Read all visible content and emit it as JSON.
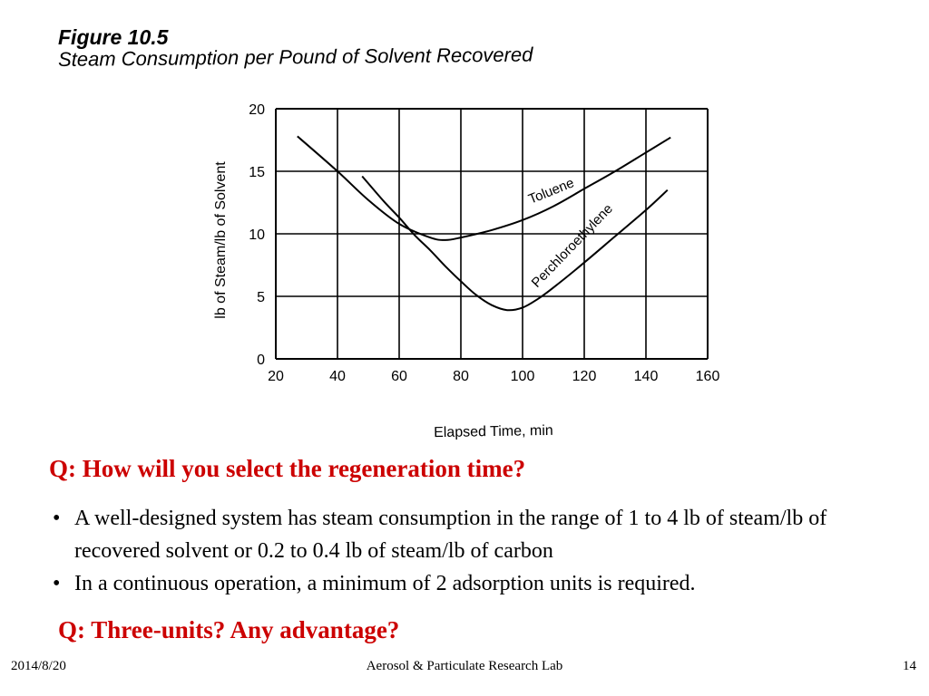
{
  "figure": {
    "label": "Figure 10.5",
    "title": "Steam Consumption per Pound of Solvent Recovered"
  },
  "chart_data": {
    "type": "line",
    "title": "Figure 10.5 Steam Consumption per Pound of Solvent Recovered",
    "xlabel": "Elapsed Time, min",
    "ylabel": "lb of  Steam/lb of Solvent",
    "xlim": [
      20,
      160
    ],
    "ylim": [
      0,
      20
    ],
    "xticks": [
      "20",
      "40",
      "60",
      "80",
      "100",
      "120",
      "140",
      "160"
    ],
    "yticks": [
      "0",
      "5",
      "10",
      "15",
      "20"
    ],
    "grid": true,
    "legend": "inline labels on curves",
    "series": [
      {
        "name": "Toluene",
        "x": [
          27,
          40,
          50,
          60,
          70,
          75,
          80,
          90,
          100,
          110,
          120,
          130,
          140,
          148
        ],
        "y": [
          17.8,
          15.0,
          12.7,
          10.8,
          9.7,
          9.5,
          9.7,
          10.3,
          11.1,
          12.2,
          13.6,
          15.0,
          16.5,
          17.7
        ]
      },
      {
        "name": "Perchloroethylene",
        "x": [
          48,
          55,
          60,
          65,
          70,
          75,
          80,
          85,
          90,
          95,
          100,
          105,
          110,
          120,
          130,
          140,
          147
        ],
        "y": [
          14.6,
          12.6,
          11.3,
          9.9,
          8.7,
          7.4,
          6.2,
          5.1,
          4.3,
          3.9,
          4.1,
          4.8,
          5.7,
          7.7,
          9.8,
          11.9,
          13.5
        ]
      }
    ]
  },
  "question1": "Q: How will you select the regeneration time?",
  "bullets": [
    "A well-designed system has steam consumption in the range of 1 to 4 lb of steam/lb of recovered solvent or 0.2 to 0.4 lb of steam/lb of carbon",
    "In a continuous operation, a minimum of 2 adsorption units is required."
  ],
  "question2": "Q: Three-units? Any advantage?",
  "footer": {
    "date": "2014/8/20",
    "lab": "Aerosol & Particulate Research Lab",
    "page": "14"
  },
  "colors": {
    "question": "#cc0000",
    "text": "#000000"
  }
}
